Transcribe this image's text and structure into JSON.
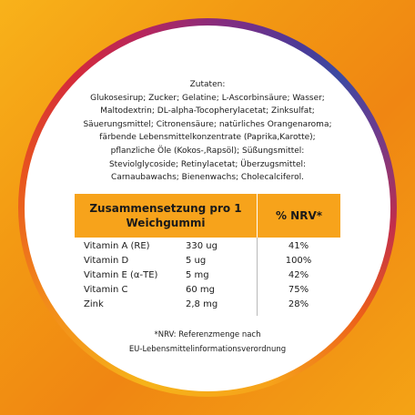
{
  "ingredients": {
    "title": "Zutaten:",
    "lines": [
      "Glukosesirup; Zucker; Gelatine; L-Ascorbinsäure; Wasser;",
      "Maltodextrin; DL-alpha-Tocopherylacetat; Zinksulfat;",
      "Säuerungsmittel; Citronensäure; natürliches Orangenaroma;",
      "färbende Lebensmittelkonzentrate (Paprika,Karotte);",
      "pflanzliche Öle (Kokos-,Rapsöl); Süßungsmittel:",
      "Steviolglycoside; Retinylacetat; Überzugsmittel:",
      "Carnaubawachs; Bienenwachs; Cholecalciferol."
    ]
  },
  "nutrition": {
    "header_line1": "Zusammensetzung pro 1",
    "header_line2": "Weichgummi",
    "nrv_header": "% NRV*",
    "rows": [
      {
        "name": "Vitamin A (RE)",
        "amount": "330 ug",
        "nrv": "41%"
      },
      {
        "name": "Vitamin D",
        "amount": "5 ug",
        "nrv": "100%"
      },
      {
        "name": "Vitamin E (α-TE)",
        "amount": "5 mg",
        "nrv": "42%"
      },
      {
        "name": "Vitamin C",
        "amount": "60 mg",
        "nrv": "75%"
      },
      {
        "name": "Zink",
        "amount": "2,8 mg",
        "nrv": "28%"
      }
    ]
  },
  "footnote": {
    "line1": "*NRV: Referenzmenge nach",
    "line2": "EU-Lebensmittelinformationsverordnung"
  },
  "colors": {
    "header_orange": "#f7a31b",
    "background_orange": "#f39a13"
  }
}
